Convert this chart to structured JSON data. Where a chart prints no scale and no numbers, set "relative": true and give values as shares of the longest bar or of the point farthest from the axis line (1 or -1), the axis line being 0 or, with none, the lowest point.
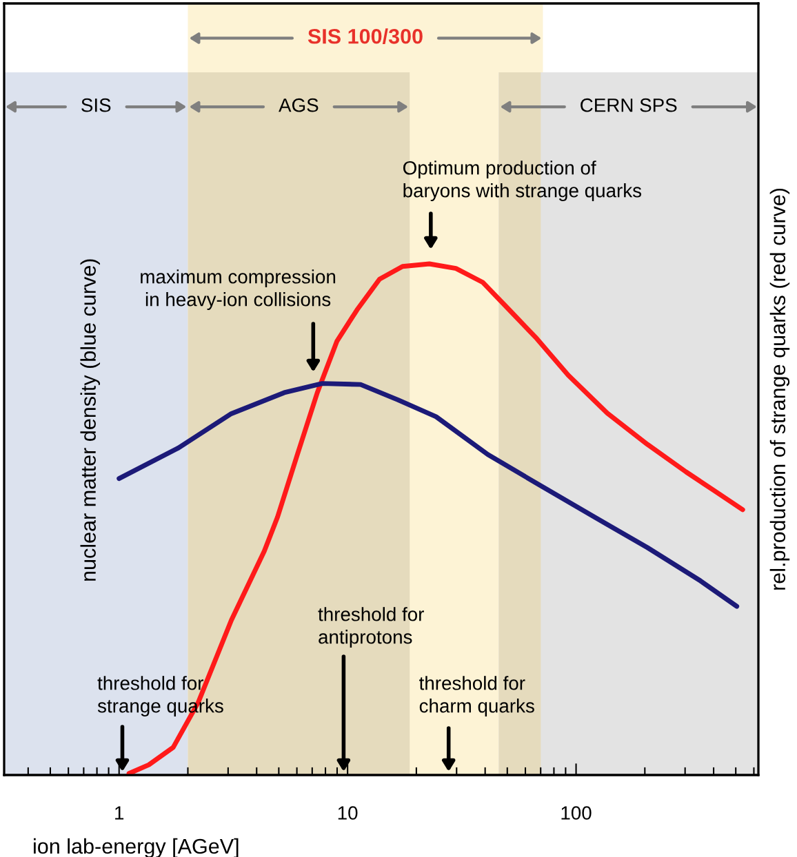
{
  "chart_data": {
    "type": "line",
    "relative": true,
    "log": "x",
    "grid": false,
    "legend": false,
    "line_style": "solid",
    "marker": "none",
    "xlabel": "ion lab-energy [AGeV]",
    "ylabel": "nuclear matter density (blue curve)",
    "y2label": "rel.production of strange quarks (red curve)",
    "xlim": [
      0.314,
      628
    ],
    "xticks": [
      1,
      10,
      100
    ],
    "bands": [
      {
        "axis": "x",
        "from": 2.0,
        "to": 71.6,
        "label": "SIS 100/300",
        "color": "#fdf3d5"
      },
      {
        "axis": "x",
        "from": 0.314,
        "to": 2.0,
        "label": "SIS",
        "color": "#dce2ee"
      },
      {
        "axis": "x",
        "from": 2.0,
        "to": 18.7,
        "label": "AGS",
        "color": "#e5dbbd"
      },
      {
        "axis": "x",
        "from": 45.9,
        "to": 628,
        "label": "CERN SPS",
        "color": "#e3e3e3"
      },
      {
        "axis": "x",
        "from": 45.9,
        "to": 70.1,
        "color": "#e5dbbd"
      }
    ],
    "series": [
      {
        "color": "#1c1a78",
        "axis": "y",
        "x": [
          1.0,
          1.82,
          3.1,
          5.28,
          7.75,
          11.4,
          16.6,
          24.4,
          41.1,
          70.0,
          120,
          205,
          350,
          505
        ],
        "values": [
          0.58,
          0.64,
          0.707,
          0.748,
          0.766,
          0.764,
          0.734,
          0.701,
          0.627,
          0.566,
          0.505,
          0.445,
          0.38,
          0.33
        ]
      },
      {
        "color": "#ff1a1a",
        "axis": "y2",
        "x": [
          1.105,
          1.35,
          1.725,
          2.22,
          3.1,
          4.32,
          4.94,
          6.03,
          7.37,
          8.99,
          11.0,
          13.8,
          17.4,
          22.8,
          29.8,
          39.0,
          51.0,
          66.6,
          92.5,
          137,
          205,
          303,
          400,
          536
        ],
        "values": [
          0.003,
          0.02,
          0.054,
          0.142,
          0.303,
          0.438,
          0.505,
          0.627,
          0.748,
          0.849,
          0.91,
          0.97,
          0.995,
          1.0,
          0.991,
          0.964,
          0.91,
          0.856,
          0.782,
          0.708,
          0.647,
          0.593,
          0.557,
          0.519
        ]
      }
    ],
    "annotations": [
      "Optimum production of\nbaryons with strange quarks",
      "maximum compression\n in heavy-ion collisions",
      "threshold for\nantiprotons",
      "threshold for\nstrange quarks",
      "threshold for\ncharm quarks"
    ]
  }
}
